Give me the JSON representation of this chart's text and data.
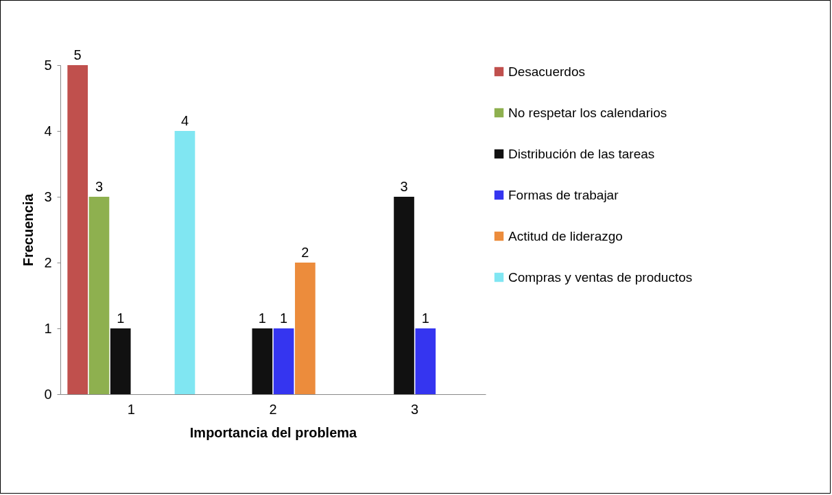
{
  "chart_data": {
    "type": "bar",
    "xlabel": "Importancia del problema",
    "ylabel": "Frecuencia",
    "categories": [
      "1",
      "2",
      "3"
    ],
    "ylim": [
      0,
      5
    ],
    "yticks": [
      0,
      1,
      2,
      3,
      4,
      5
    ],
    "grid": false,
    "legend": "right",
    "series": [
      {
        "name": "Desacuerdos",
        "color": "#c0504d",
        "values": [
          5,
          0,
          0
        ],
        "value_labels": [
          "5",
          null,
          null
        ]
      },
      {
        "name": "No respetar los calendarios",
        "color": "#8eb04f",
        "values": [
          3,
          0,
          0
        ],
        "value_labels": [
          "3",
          null,
          null
        ]
      },
      {
        "name": "Distribución de las tareas",
        "color": "#111111",
        "values": [
          1,
          1,
          3
        ],
        "value_labels": [
          "1",
          "1",
          "3"
        ]
      },
      {
        "name": "Formas de trabajar",
        "color": "#3535f0",
        "values": [
          0,
          1,
          1
        ],
        "value_labels": [
          null,
          "1",
          "1"
        ]
      },
      {
        "name": "Actitud de liderazgo",
        "color": "#ec8c3c",
        "values": [
          0,
          2,
          0
        ],
        "value_labels": [
          null,
          "2",
          null
        ]
      },
      {
        "name": "Compras y ventas de productos",
        "color": "#80e6f2",
        "values": [
          4,
          0,
          0
        ],
        "value_labels": [
          "4",
          null,
          null
        ]
      }
    ]
  }
}
